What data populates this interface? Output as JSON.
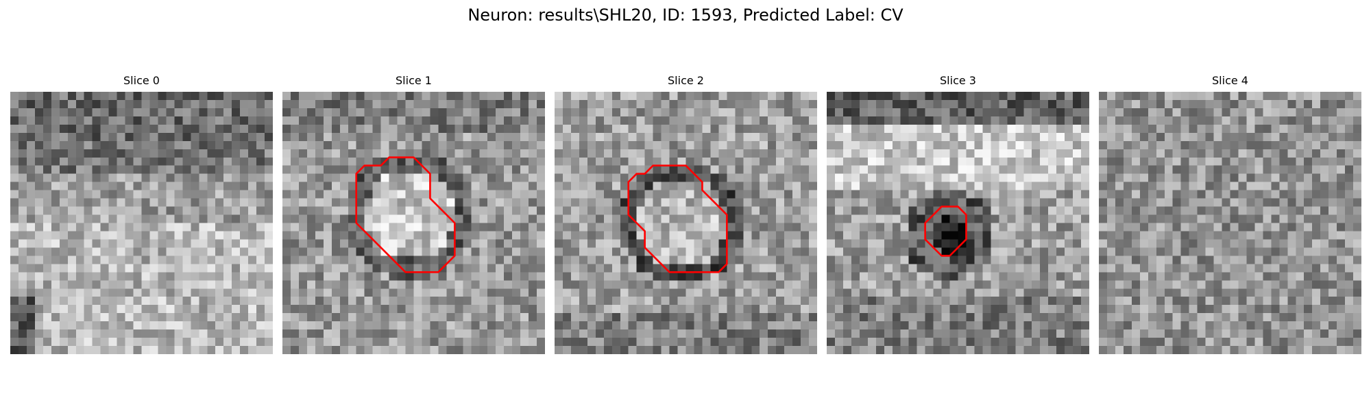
{
  "figure": {
    "title": "Neuron: results\\SHL20, ID: 1593, Predicted Label: CV"
  },
  "colors": {
    "background": "#ffffff",
    "contour": "#ff0000",
    "colormap": "gray"
  },
  "grid_size": 32,
  "panels": [
    {
      "title": "Slice 0",
      "has_contour": false,
      "contour": []
    },
    {
      "title": "Slice 1",
      "has_contour": true,
      "contour": [
        [
          14,
          8
        ],
        [
          16,
          8
        ],
        [
          18,
          10
        ],
        [
          18,
          13
        ],
        [
          21,
          16
        ],
        [
          21,
          20
        ],
        [
          20,
          21
        ],
        [
          19,
          22
        ],
        [
          15,
          22
        ],
        [
          11,
          18
        ],
        [
          9,
          16
        ],
        [
          9,
          10
        ],
        [
          10,
          9
        ],
        [
          12,
          9
        ],
        [
          13,
          8
        ]
      ]
    },
    {
      "title": "Slice 2",
      "has_contour": true,
      "contour": [
        [
          12,
          9
        ],
        [
          16,
          9
        ],
        [
          18,
          11
        ],
        [
          18,
          12
        ],
        [
          21,
          15
        ],
        [
          21,
          21
        ],
        [
          20,
          22
        ],
        [
          14,
          22
        ],
        [
          12,
          20
        ],
        [
          11,
          19
        ],
        [
          11,
          17
        ],
        [
          10,
          16
        ],
        [
          9,
          15
        ],
        [
          9,
          11
        ],
        [
          10,
          10
        ],
        [
          11,
          10
        ]
      ]
    },
    {
      "title": "Slice 3",
      "has_contour": true,
      "contour": [
        [
          14,
          14
        ],
        [
          16,
          14
        ],
        [
          17,
          15
        ],
        [
          17,
          18
        ],
        [
          16,
          19
        ],
        [
          15,
          20
        ],
        [
          14,
          20
        ],
        [
          13,
          19
        ],
        [
          12,
          18
        ],
        [
          12,
          16
        ],
        [
          13,
          15
        ]
      ]
    },
    {
      "title": "Slice 4",
      "has_contour": false,
      "contour": []
    }
  ]
}
